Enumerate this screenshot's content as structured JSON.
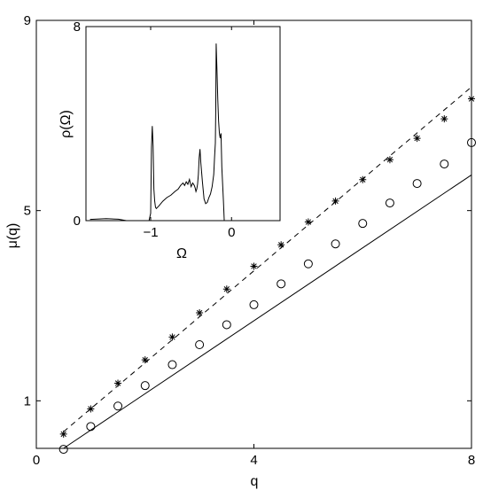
{
  "chart_data": [
    {
      "type": "line",
      "role": "main",
      "xlabel": "q",
      "ylabel": "μ(q)",
      "xlim": [
        0,
        8
      ],
      "ylim": [
        0,
        9
      ],
      "xticks": [
        0,
        4,
        8
      ],
      "yticks": [
        1,
        5,
        9
      ],
      "xtick_labels": [
        "0",
        "4",
        "8"
      ],
      "ytick_labels": [
        "1",
        "5",
        "9"
      ],
      "series": [
        {
          "style": "dashed-line",
          "x": [
            0.5,
            8
          ],
          "y": [
            0.35,
            7.6
          ]
        },
        {
          "style": "solid-line",
          "x": [
            0.5,
            8
          ],
          "y": [
            0.0,
            5.75
          ]
        },
        {
          "style": "star-markers",
          "x": [
            0.5,
            1,
            1.5,
            2,
            2.5,
            3,
            3.5,
            4,
            4.5,
            5,
            5.5,
            6,
            6.5,
            7,
            7.5,
            8
          ],
          "y": [
            0.3,
            0.83,
            1.37,
            1.86,
            2.34,
            2.85,
            3.35,
            3.83,
            4.28,
            4.76,
            5.2,
            5.65,
            6.07,
            6.52,
            6.93,
            7.35
          ]
        },
        {
          "style": "circle-markers",
          "x": [
            0.5,
            1,
            1.5,
            2,
            2.5,
            3,
            3.5,
            4,
            4.5,
            5,
            5.5,
            6,
            6.5,
            7,
            7.5,
            8
          ],
          "y": [
            -0.02,
            0.46,
            0.89,
            1.32,
            1.76,
            2.18,
            2.6,
            3.02,
            3.46,
            3.88,
            4.3,
            4.73,
            5.16,
            5.57,
            5.98,
            6.43
          ]
        }
      ]
    },
    {
      "type": "line",
      "role": "inset",
      "xlabel": "Ω",
      "ylabel": "ρ(Ω)",
      "xlim": [
        -1.8,
        0.6
      ],
      "ylim": [
        0,
        8
      ],
      "xticks": [
        -1,
        0
      ],
      "yticks": [
        0,
        8
      ],
      "xtick_labels": [
        "−1",
        "0"
      ],
      "ytick_labels": [
        "0",
        "8"
      ],
      "series": [
        {
          "style": "solid-line",
          "x": [
            -1.75,
            -1.55,
            -1.4,
            -1.3,
            -1.1,
            -1.02,
            -1.0,
            -0.99,
            -0.98,
            -0.97,
            -0.96,
            -0.95,
            -0.94,
            -0.93,
            -0.9,
            -0.85,
            -0.8,
            -0.75,
            -0.7,
            -0.66,
            -0.63,
            -0.6,
            -0.58,
            -0.56,
            -0.54,
            -0.52,
            -0.5,
            -0.48,
            -0.46,
            -0.45,
            -0.44,
            -0.43,
            -0.42,
            -0.41,
            -0.4,
            -0.39,
            -0.38,
            -0.36,
            -0.34,
            -0.32,
            -0.3,
            -0.28,
            -0.26,
            -0.24,
            -0.22,
            -0.21,
            -0.2,
            -0.195,
            -0.19,
            -0.18,
            -0.17,
            -0.16,
            -0.15,
            -0.14,
            -0.13,
            -0.12,
            -0.1,
            -0.09,
            0.6
          ],
          "y": [
            0.05,
            0.08,
            0.06,
            0.0,
            0.0,
            0.0,
            0.3,
            3.0,
            3.9,
            3.1,
            1.3,
            0.8,
            0.55,
            0.5,
            0.6,
            0.8,
            0.95,
            1.05,
            1.2,
            1.3,
            1.45,
            1.55,
            1.45,
            1.6,
            1.5,
            1.7,
            1.4,
            1.55,
            1.45,
            1.35,
            1.2,
            1.3,
            1.5,
            1.9,
            2.6,
            2.95,
            2.4,
            1.6,
            0.9,
            0.7,
            0.75,
            0.95,
            1.1,
            1.4,
            1.9,
            2.6,
            3.2,
            4.6,
            7.3,
            6.2,
            5.0,
            4.1,
            3.6,
            3.4,
            3.6,
            2.2,
            0.8,
            0.0,
            0.0
          ]
        }
      ]
    }
  ]
}
